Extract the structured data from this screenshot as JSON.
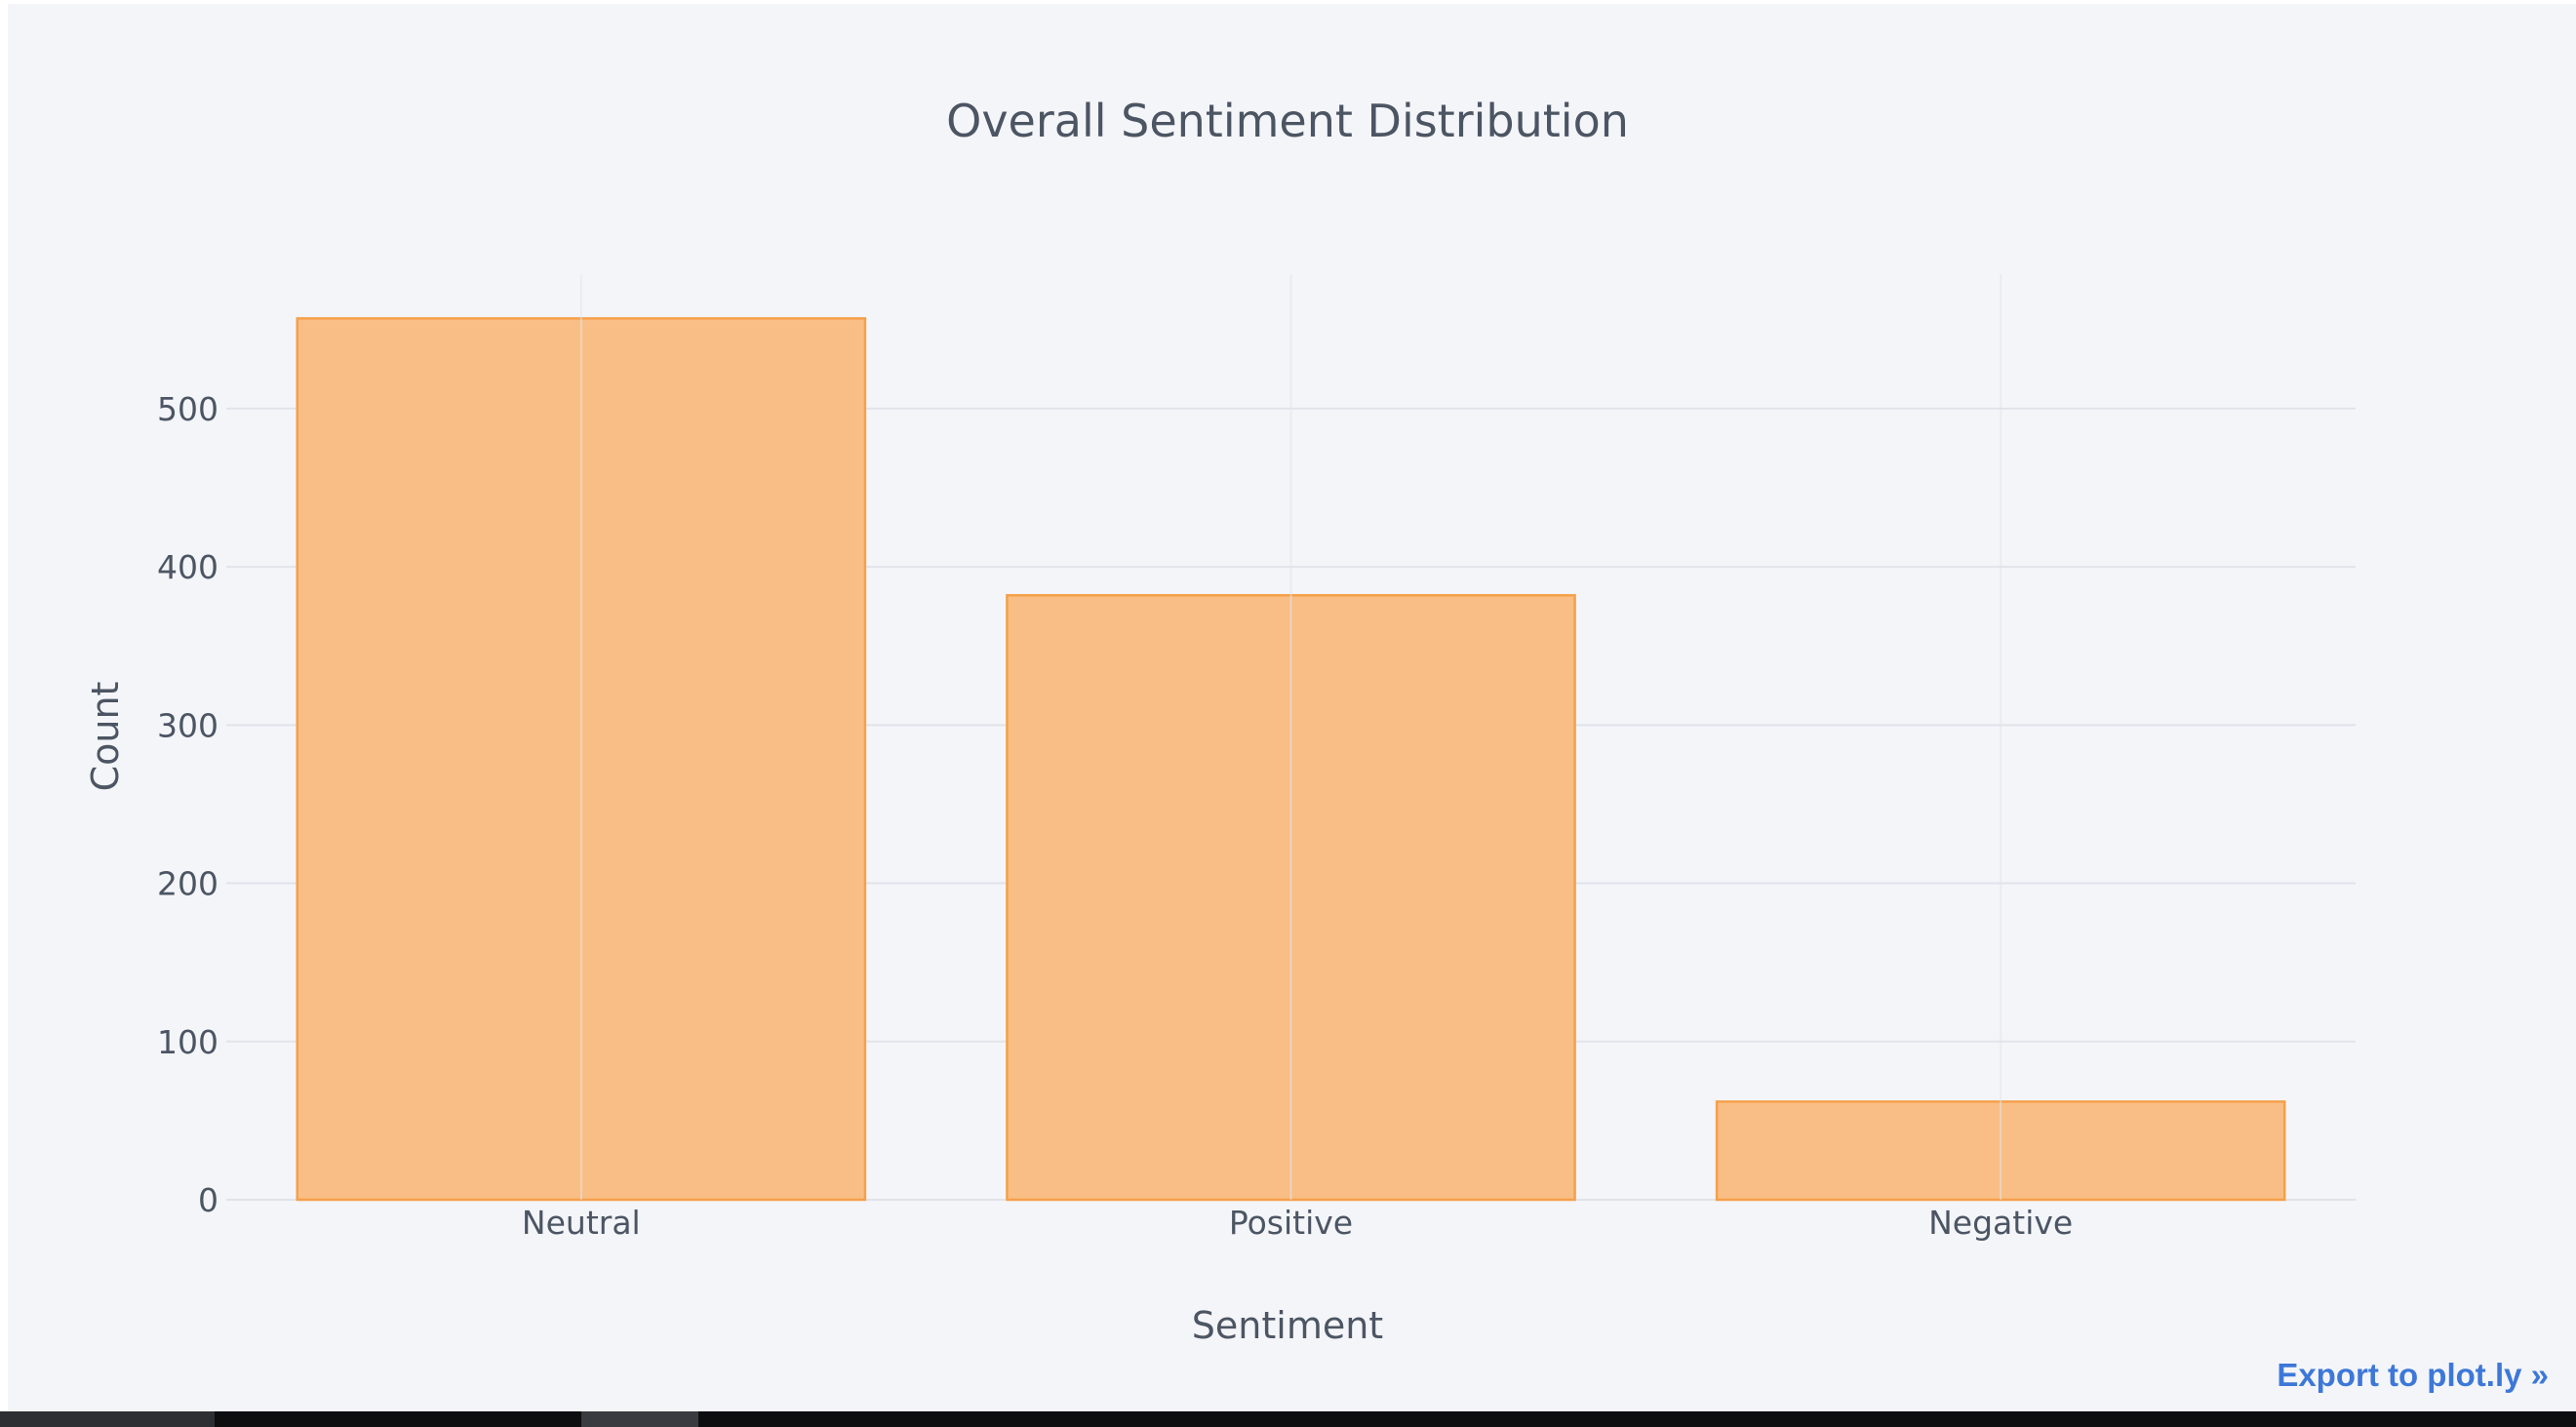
{
  "chart_data": {
    "type": "bar",
    "title": "Overall Sentiment Distribution",
    "xlabel": "Sentiment",
    "ylabel": "Count",
    "categories": [
      "Neutral",
      "Positive",
      "Negative"
    ],
    "values": [
      557,
      382,
      62
    ],
    "ylim": [
      0,
      585
    ],
    "yticks": [
      0,
      100,
      200,
      300,
      400,
      500
    ],
    "grid": true,
    "colors": {
      "bar_fill": "#f9be85",
      "bar_stroke": "#f5a04a",
      "grid": "#e1e3ea",
      "text": "#4c5563",
      "background": "#f4f5f9"
    }
  },
  "export_link": {
    "label": "Export to plot.ly »",
    "color": "#3d78d8"
  }
}
